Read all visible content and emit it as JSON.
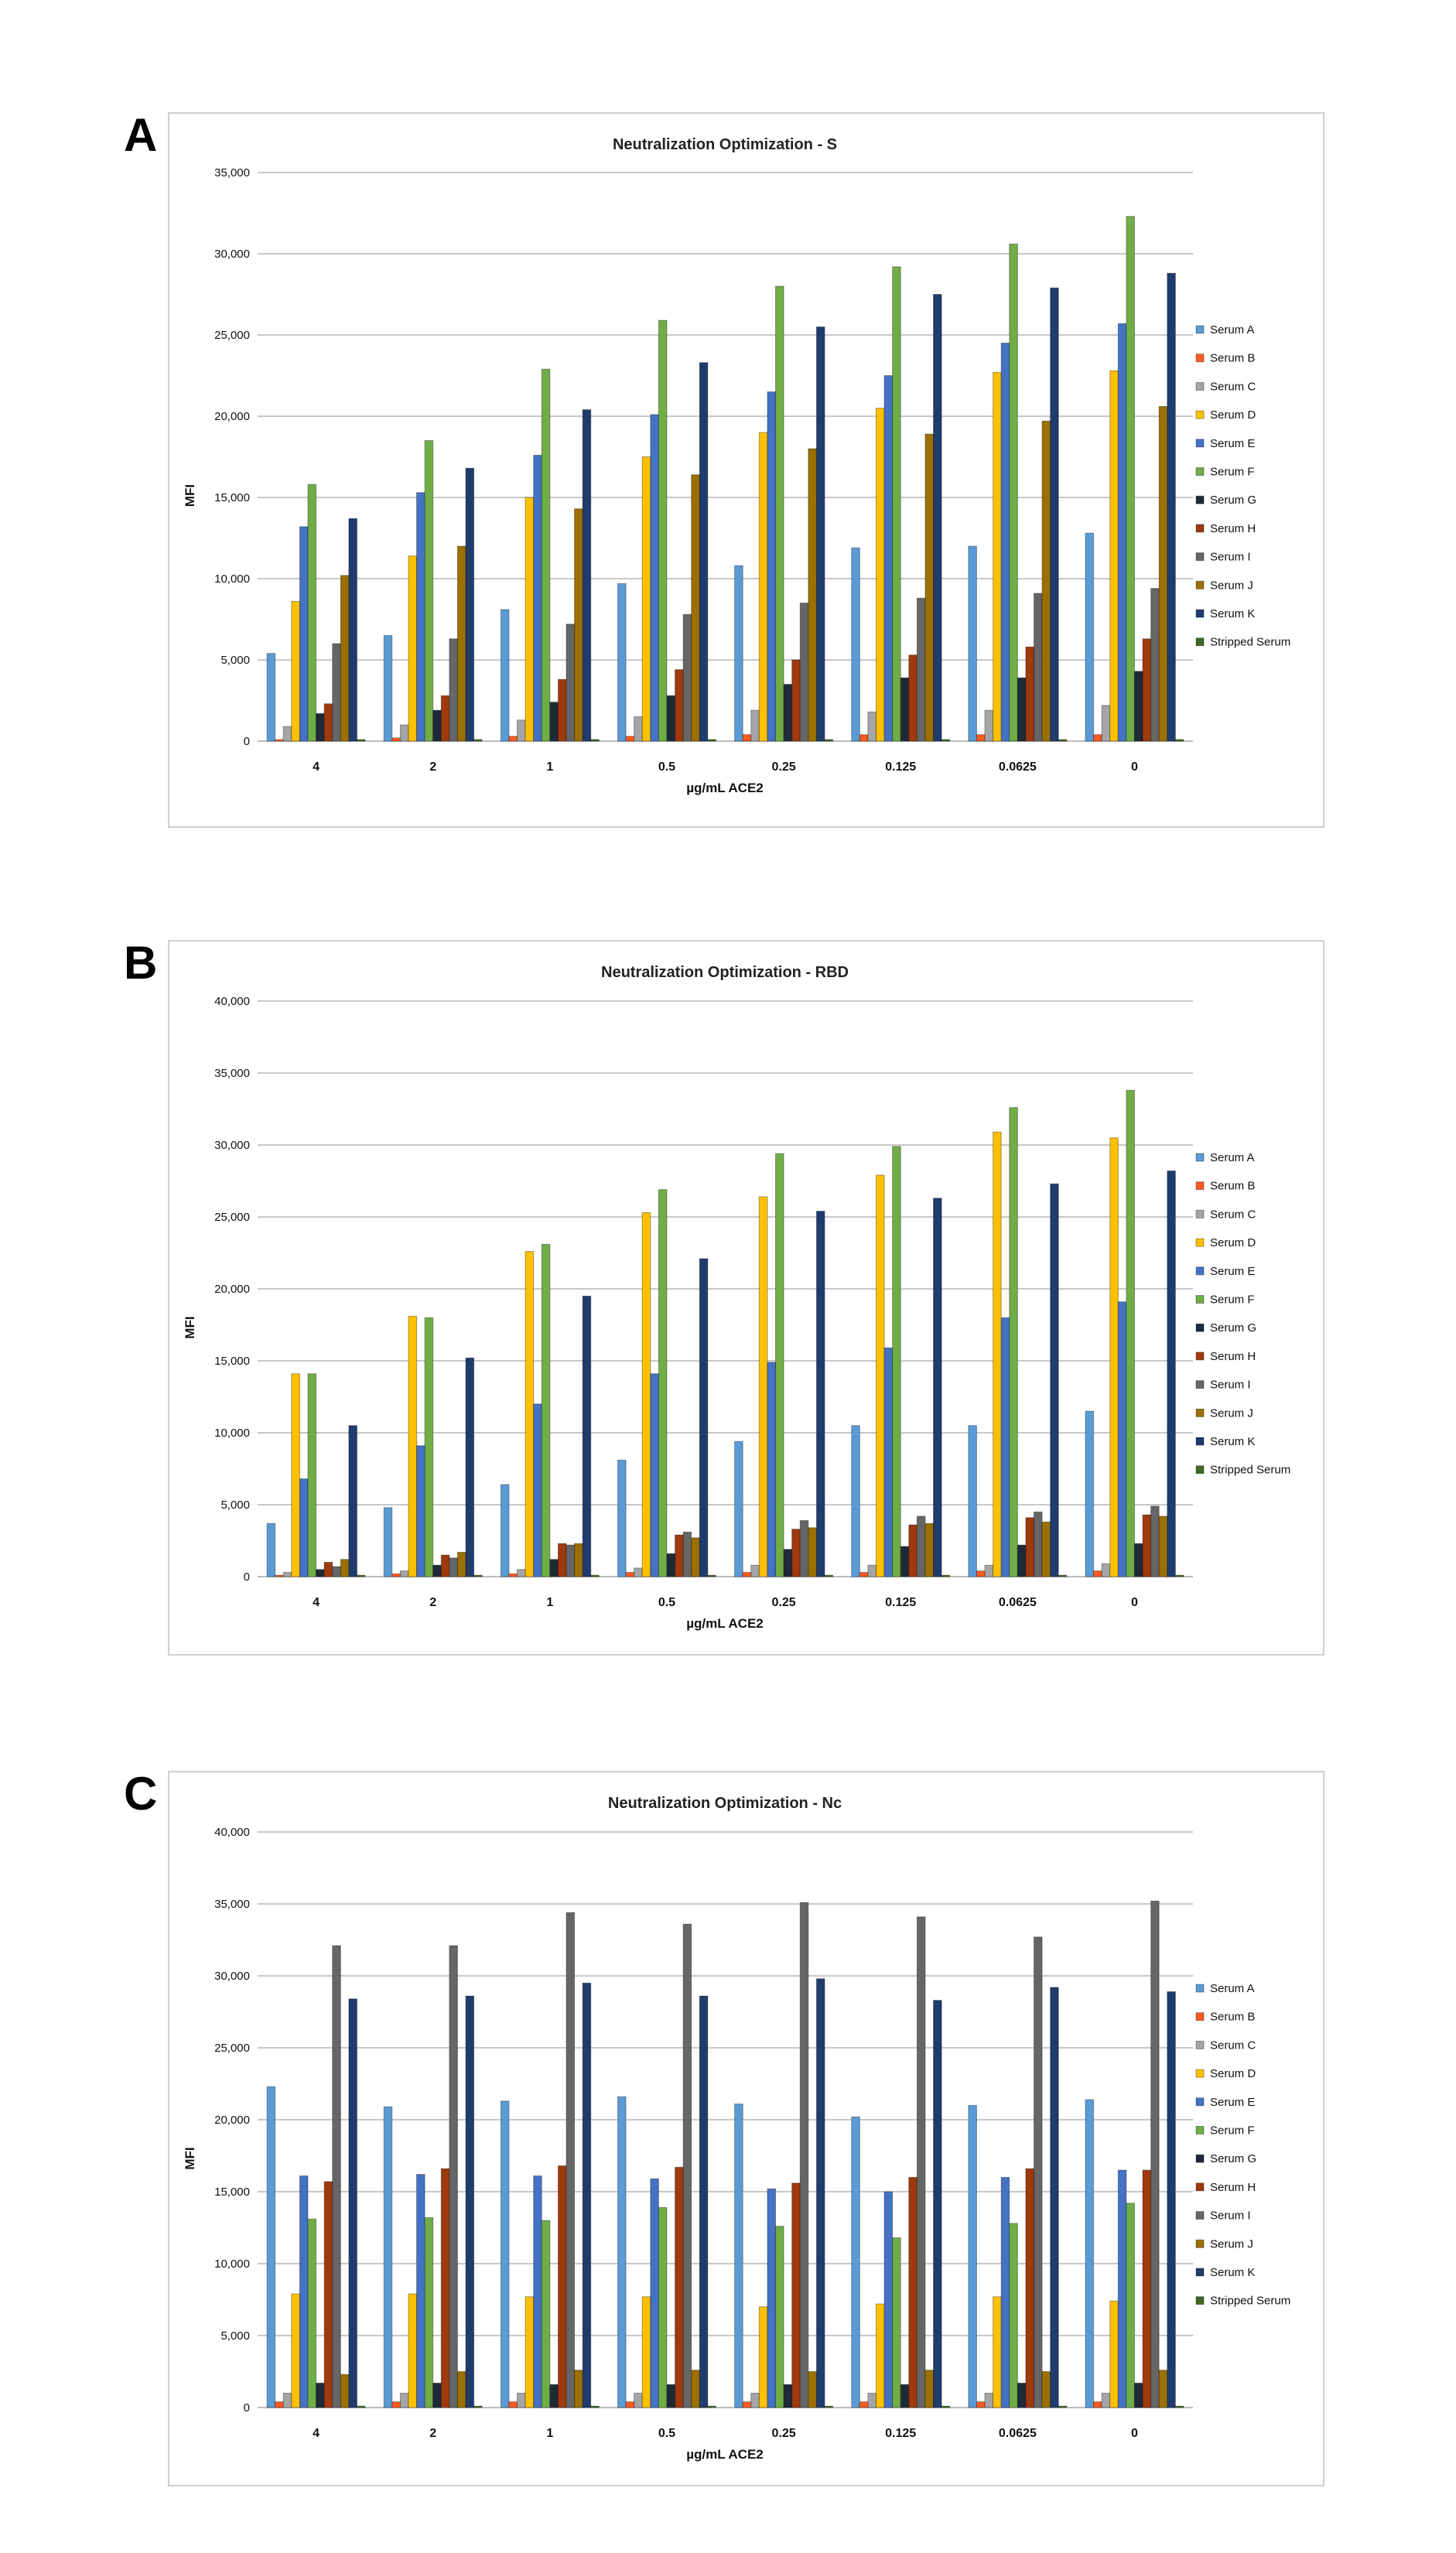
{
  "series_names": [
    "Serum A",
    "Serum B",
    "Serum C",
    "Serum D",
    "Serum E",
    "Serum F",
    "Serum G",
    "Serum H",
    "Serum I",
    "Serum J",
    "Serum K",
    "Stripped Serum"
  ],
  "series_colors": [
    "#5B9BD5",
    "#FF5A1F",
    "#A5A5A5",
    "#FFC000",
    "#4472C4",
    "#70AD47",
    "#1F2A38",
    "#9E3A0E",
    "#666666",
    "#9A7000",
    "#203C6E",
    "#3F6A26"
  ],
  "chart_data": [
    {
      "panel": "A",
      "type": "bar",
      "title": "Neutralization Optimization - S",
      "xlabel": "µg/mL ACE2",
      "ylabel": "MFI",
      "ylim": [
        0,
        35000
      ],
      "yticks": [
        "0",
        "5,000",
        "10,000",
        "15,000",
        "20,000",
        "25,000",
        "30,000",
        "35,000"
      ],
      "grid": true,
      "legend": "right",
      "categories": [
        "4",
        "2",
        "1",
        "0.5",
        "0.25",
        "0.125",
        "0.0625",
        "0"
      ],
      "series": [
        {
          "name": "Serum A",
          "values": [
            5400,
            6500,
            8100,
            9700,
            10800,
            11900,
            12000,
            12800
          ]
        },
        {
          "name": "Serum B",
          "values": [
            100,
            200,
            300,
            300,
            400,
            400,
            400,
            400
          ]
        },
        {
          "name": "Serum C",
          "values": [
            900,
            1000,
            1300,
            1500,
            1900,
            1800,
            1900,
            2200
          ]
        },
        {
          "name": "Serum D",
          "values": [
            8600,
            11400,
            15000,
            17500,
            19000,
            20500,
            22700,
            22800
          ]
        },
        {
          "name": "Serum E",
          "values": [
            13200,
            15300,
            17600,
            20100,
            21500,
            22500,
            24500,
            25700
          ]
        },
        {
          "name": "Serum F",
          "values": [
            15800,
            18500,
            22900,
            25900,
            28000,
            29200,
            30600,
            32300
          ]
        },
        {
          "name": "Serum G",
          "values": [
            1700,
            1900,
            2400,
            2800,
            3500,
            3900,
            3900,
            4300
          ]
        },
        {
          "name": "Serum H",
          "values": [
            2300,
            2800,
            3800,
            4400,
            5000,
            5300,
            5800,
            6300
          ]
        },
        {
          "name": "Serum I",
          "values": [
            6000,
            6300,
            7200,
            7800,
            8500,
            8800,
            9100,
            9400
          ]
        },
        {
          "name": "Serum J",
          "values": [
            10200,
            12000,
            14300,
            16400,
            18000,
            18900,
            19700,
            20600
          ]
        },
        {
          "name": "Serum K",
          "values": [
            13700,
            16800,
            20400,
            23300,
            25500,
            27500,
            27900,
            28800
          ]
        },
        {
          "name": "Stripped Serum",
          "values": [
            100,
            100,
            100,
            100,
            100,
            100,
            100,
            100
          ]
        }
      ]
    },
    {
      "panel": "B",
      "type": "bar",
      "title": "Neutralization Optimization - RBD",
      "xlabel": "µg/mL ACE2",
      "ylabel": "MFI",
      "ylim": [
        0,
        40000
      ],
      "yticks": [
        "0",
        "5,000",
        "10,000",
        "15,000",
        "20,000",
        "25,000",
        "30,000",
        "35,000",
        "40,000"
      ],
      "grid": true,
      "legend": "right",
      "categories": [
        "4",
        "2",
        "1",
        "0.5",
        "0.25",
        "0.125",
        "0.0625",
        "0"
      ],
      "series": [
        {
          "name": "Serum A",
          "values": [
            3700,
            4800,
            6400,
            8100,
            9400,
            10500,
            10500,
            11500
          ]
        },
        {
          "name": "Serum B",
          "values": [
            100,
            200,
            200,
            300,
            300,
            300,
            400,
            400
          ]
        },
        {
          "name": "Serum C",
          "values": [
            300,
            400,
            500,
            600,
            800,
            800,
            800,
            900
          ]
        },
        {
          "name": "Serum D",
          "values": [
            14100,
            18100,
            22600,
            25300,
            26400,
            27900,
            30900,
            30500
          ]
        },
        {
          "name": "Serum E",
          "values": [
            6800,
            9100,
            12000,
            14100,
            14900,
            15900,
            18000,
            19100
          ]
        },
        {
          "name": "Serum F",
          "values": [
            14100,
            18000,
            23100,
            26900,
            29400,
            29900,
            32600,
            33800
          ]
        },
        {
          "name": "Serum G",
          "values": [
            500,
            800,
            1200,
            1600,
            1900,
            2100,
            2200,
            2300
          ]
        },
        {
          "name": "Serum H",
          "values": [
            1000,
            1500,
            2300,
            2900,
            3300,
            3600,
            4100,
            4300
          ]
        },
        {
          "name": "Serum I",
          "values": [
            700,
            1300,
            2200,
            3100,
            3900,
            4200,
            4500,
            4900
          ]
        },
        {
          "name": "Serum J",
          "values": [
            1200,
            1700,
            2300,
            2700,
            3400,
            3700,
            3800,
            4200
          ]
        },
        {
          "name": "Serum K",
          "values": [
            10500,
            15200,
            19500,
            22100,
            25400,
            26300,
            27300,
            28200
          ]
        },
        {
          "name": "Stripped Serum",
          "values": [
            100,
            100,
            100,
            100,
            100,
            100,
            100,
            100
          ]
        }
      ]
    },
    {
      "panel": "C",
      "type": "bar",
      "title": "Neutralization Optimization - Nc",
      "xlabel": "µg/mL ACE2",
      "ylabel": "MFI",
      "ylim": [
        0,
        40000
      ],
      "yticks": [
        "0",
        "5,000",
        "10,000",
        "15,000",
        "20,000",
        "25,000",
        "30,000",
        "35,000",
        "40,000"
      ],
      "grid": true,
      "legend": "right",
      "categories": [
        "4",
        "2",
        "1",
        "0.5",
        "0.25",
        "0.125",
        "0.0625",
        "0"
      ],
      "series": [
        {
          "name": "Serum A",
          "values": [
            22300,
            20900,
            21300,
            21600,
            21100,
            20200,
            21000,
            21400
          ]
        },
        {
          "name": "Serum B",
          "values": [
            400,
            400,
            400,
            400,
            400,
            400,
            400,
            400
          ]
        },
        {
          "name": "Serum C",
          "values": [
            1000,
            1000,
            1000,
            1000,
            1000,
            1000,
            1000,
            1000
          ]
        },
        {
          "name": "Serum D",
          "values": [
            7900,
            7900,
            7700,
            7700,
            7000,
            7200,
            7700,
            7400
          ]
        },
        {
          "name": "Serum E",
          "values": [
            16100,
            16200,
            16100,
            15900,
            15200,
            15000,
            16000,
            16500
          ]
        },
        {
          "name": "Serum F",
          "values": [
            13100,
            13200,
            13000,
            13900,
            12600,
            11800,
            12800,
            14200
          ]
        },
        {
          "name": "Serum G",
          "values": [
            1700,
            1700,
            1600,
            1600,
            1600,
            1600,
            1700,
            1700
          ]
        },
        {
          "name": "Serum H",
          "values": [
            15700,
            16600,
            16800,
            16700,
            15600,
            16000,
            16600,
            16500
          ]
        },
        {
          "name": "Serum I",
          "values": [
            32100,
            32100,
            34400,
            33600,
            35100,
            34100,
            32700,
            35200
          ]
        },
        {
          "name": "Serum J",
          "values": [
            2300,
            2500,
            2600,
            2600,
            2500,
            2600,
            2500,
            2600
          ]
        },
        {
          "name": "Serum K",
          "values": [
            28400,
            28600,
            29500,
            28600,
            29800,
            28300,
            29200,
            28900
          ]
        },
        {
          "name": "Stripped Serum",
          "values": [
            100,
            100,
            100,
            100,
            100,
            100,
            100,
            100
          ]
        }
      ]
    }
  ]
}
